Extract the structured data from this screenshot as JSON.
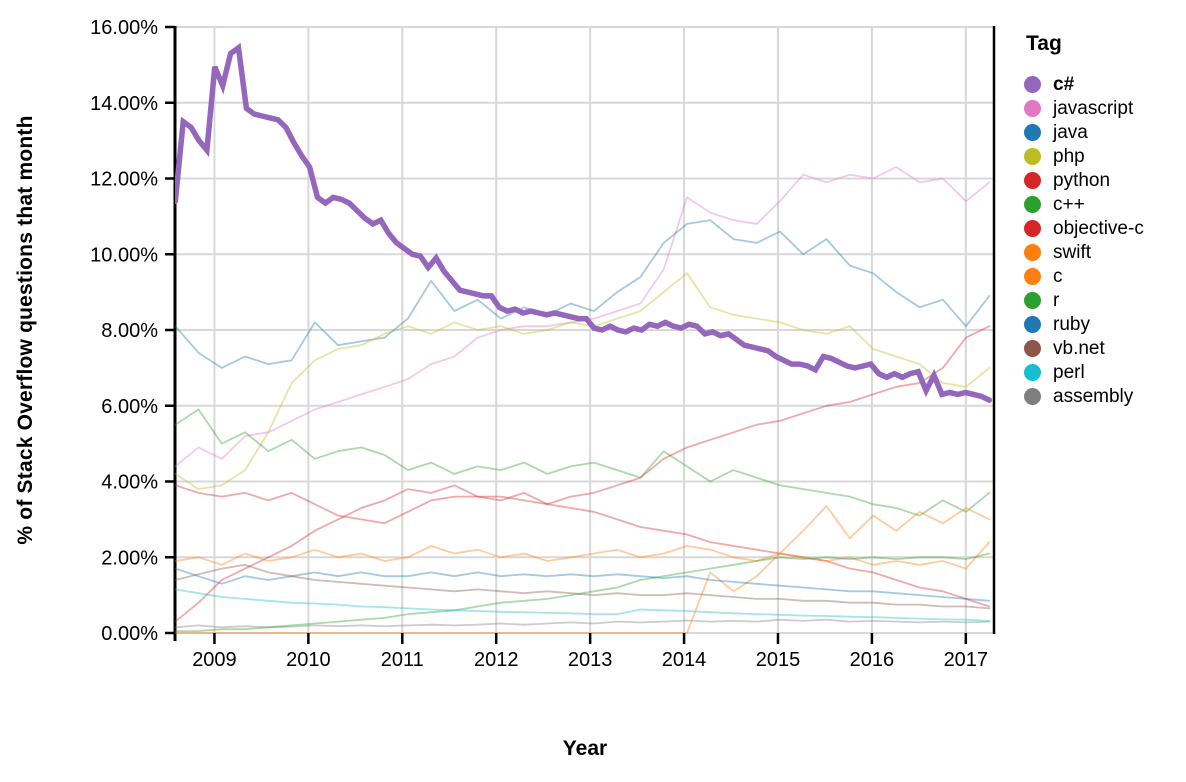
{
  "figure": {
    "y_axis": {
      "title": "% of Stack Overflow questions that month",
      "tick_values": [
        16,
        14,
        12,
        10,
        8,
        6,
        4,
        2,
        0
      ],
      "tick_labels": [
        "16.00%",
        "14.00%",
        "12.00%",
        "10.00%",
        "8.00%",
        "6.00%",
        "4.00%",
        "2.00%",
        "0.00%"
      ]
    },
    "x_axis": {
      "title": "Year",
      "tick_values": [
        2009,
        2010,
        2011,
        2012,
        2013,
        2014,
        2015,
        2016,
        2017
      ],
      "tick_labels": [
        "2009",
        "2010",
        "2011",
        "2012",
        "2013",
        "2014",
        "2015",
        "2016",
        "2017"
      ]
    },
    "legend": {
      "title": "Tag",
      "items": [
        {
          "label": "c#",
          "color": "#9467bd",
          "bold": true
        },
        {
          "label": "javascript",
          "color": "#e377c2",
          "bold": false
        },
        {
          "label": "java",
          "color": "#1f77b4",
          "bold": false
        },
        {
          "label": "php",
          "color": "#bcbd22",
          "bold": false
        },
        {
          "label": "python",
          "color": "#d62728",
          "bold": false
        },
        {
          "label": "c++",
          "color": "#2ca02c",
          "bold": false
        },
        {
          "label": "objective-c",
          "color": "#d62728",
          "bold": false
        },
        {
          "label": "swift",
          "color": "#ff7f0e",
          "bold": false
        },
        {
          "label": "c",
          "color": "#ff7f0e",
          "bold": false
        },
        {
          "label": "r",
          "color": "#2ca02c",
          "bold": false
        },
        {
          "label": "ruby",
          "color": "#1f77b4",
          "bold": false
        },
        {
          "label": "vb.net",
          "color": "#8c564b",
          "bold": false
        },
        {
          "label": "perl",
          "color": "#17becf",
          "bold": false
        },
        {
          "label": "assembly",
          "color": "#7f7f7f",
          "bold": false
        }
      ]
    }
  },
  "chart_data": {
    "type": "line",
    "title": "",
    "xlabel": "Year",
    "ylabel": "% of Stack Overflow questions that month",
    "x_range": [
      2008.58,
      2017.3
    ],
    "ylim": [
      0,
      16
    ],
    "grid": true,
    "legend_position": "right",
    "highlighted_series": "c#",
    "series": [
      {
        "name": "javascript",
        "color": "#e377c2",
        "highlight": false,
        "x_start": 2008.583,
        "x_end": 2017.25,
        "values": [
          4.4,
          4.9,
          4.6,
          5.2,
          5.3,
          5.6,
          5.9,
          6.1,
          6.3,
          6.5,
          6.7,
          7.1,
          7.3,
          7.8,
          8.0,
          8.1,
          8.1,
          8.2,
          8.3,
          8.5,
          8.7,
          9.6,
          11.5,
          11.1,
          10.9,
          10.8,
          11.4,
          12.1,
          11.9,
          12.1,
          12.0,
          12.3,
          11.9,
          12.0,
          11.4,
          11.9
        ]
      },
      {
        "name": "java",
        "color": "#1f77b4",
        "highlight": false,
        "x_start": 2008.583,
        "x_end": 2017.25,
        "values": [
          8.1,
          7.4,
          7.0,
          7.3,
          7.1,
          7.2,
          8.2,
          7.6,
          7.7,
          7.8,
          8.3,
          9.3,
          8.5,
          8.8,
          8.3,
          8.6,
          8.4,
          8.7,
          8.5,
          9.0,
          9.4,
          10.3,
          10.8,
          10.9,
          10.4,
          10.3,
          10.6,
          10.0,
          10.4,
          9.7,
          9.5,
          9.0,
          8.6,
          8.8,
          8.1,
          8.9
        ]
      },
      {
        "name": "php",
        "color": "#bcbd22",
        "highlight": false,
        "x_start": 2008.583,
        "x_end": 2017.25,
        "values": [
          4.2,
          3.8,
          3.9,
          4.3,
          5.3,
          6.6,
          7.2,
          7.5,
          7.6,
          7.9,
          8.1,
          7.9,
          8.2,
          8.0,
          8.1,
          7.9,
          8.0,
          8.2,
          8.1,
          8.3,
          8.5,
          9.0,
          9.5,
          8.6,
          8.4,
          8.3,
          8.2,
          8.0,
          7.9,
          8.1,
          7.5,
          7.3,
          7.1,
          6.6,
          6.5,
          7.0
        ]
      },
      {
        "name": "python",
        "color": "#d62728",
        "highlight": false,
        "x_start": 2008.583,
        "x_end": 2017.25,
        "values": [
          3.9,
          3.7,
          3.6,
          3.7,
          3.5,
          3.7,
          3.4,
          3.1,
          3.0,
          2.9,
          3.2,
          3.5,
          3.6,
          3.6,
          3.6,
          3.5,
          3.4,
          3.6,
          3.7,
          3.9,
          4.1,
          4.6,
          4.9,
          5.1,
          5.3,
          5.5,
          5.6,
          5.8,
          6.0,
          6.1,
          6.3,
          6.5,
          6.6,
          7.0,
          7.8,
          8.1
        ]
      },
      {
        "name": "c++",
        "color": "#2ca02c",
        "highlight": false,
        "x_start": 2008.583,
        "x_end": 2017.25,
        "values": [
          5.5,
          5.9,
          5.0,
          5.3,
          4.8,
          5.1,
          4.6,
          4.8,
          4.9,
          4.7,
          4.3,
          4.5,
          4.2,
          4.4,
          4.3,
          4.5,
          4.2,
          4.4,
          4.5,
          4.3,
          4.1,
          4.8,
          4.4,
          4.0,
          4.3,
          4.1,
          3.9,
          3.8,
          3.7,
          3.6,
          3.4,
          3.3,
          3.1,
          3.5,
          3.2,
          3.7
        ]
      },
      {
        "name": "objective-c",
        "color": "#d62728",
        "highlight": false,
        "x_start": 2008.583,
        "x_end": 2017.25,
        "values": [
          0.3,
          0.8,
          1.4,
          1.7,
          2.0,
          2.3,
          2.7,
          3.0,
          3.3,
          3.5,
          3.8,
          3.7,
          3.9,
          3.6,
          3.5,
          3.7,
          3.4,
          3.3,
          3.2,
          3.0,
          2.8,
          2.7,
          2.6,
          2.4,
          2.3,
          2.2,
          2.1,
          2.0,
          1.9,
          1.7,
          1.6,
          1.4,
          1.2,
          1.1,
          0.9,
          0.7
        ]
      },
      {
        "name": "swift",
        "color": "#ff7f0e",
        "highlight": false,
        "x_start": 2008.583,
        "x_end": 2017.25,
        "values": [
          0,
          0,
          0,
          0,
          0,
          0,
          0,
          0,
          0,
          0,
          0,
          0,
          0,
          0,
          0,
          0,
          0,
          0,
          0,
          0,
          0,
          0,
          0,
          1.6,
          1.1,
          1.5,
          2.1,
          2.7,
          3.35,
          2.5,
          3.1,
          2.7,
          3.2,
          2.9,
          3.3,
          3.0
        ]
      },
      {
        "name": "c",
        "color": "#ff7f0e",
        "highlight": false,
        "x_start": 2008.583,
        "x_end": 2017.25,
        "values": [
          1.9,
          2.0,
          1.8,
          2.1,
          1.9,
          2.0,
          2.2,
          2.0,
          2.1,
          1.9,
          2.0,
          2.3,
          2.1,
          2.2,
          2.0,
          2.1,
          1.9,
          2.0,
          2.1,
          2.2,
          2.0,
          2.1,
          2.3,
          2.2,
          2.0,
          1.9,
          2.1,
          2.0,
          1.9,
          2.0,
          1.8,
          1.9,
          1.8,
          1.9,
          1.7,
          2.4
        ]
      },
      {
        "name": "r",
        "color": "#2ca02c",
        "highlight": false,
        "x_start": 2008.583,
        "x_end": 2017.25,
        "values": [
          0.05,
          0.05,
          0.1,
          0.1,
          0.15,
          0.2,
          0.25,
          0.3,
          0.35,
          0.4,
          0.5,
          0.55,
          0.6,
          0.7,
          0.8,
          0.85,
          0.9,
          1.0,
          1.1,
          1.2,
          1.4,
          1.5,
          1.6,
          1.7,
          1.8,
          1.9,
          2.0,
          1.95,
          2.0,
          1.95,
          2.0,
          1.95,
          2.0,
          2.0,
          1.95,
          2.1
        ]
      },
      {
        "name": "ruby",
        "color": "#1f77b4",
        "highlight": false,
        "x_start": 2008.583,
        "x_end": 2017.25,
        "values": [
          1.7,
          1.5,
          1.3,
          1.5,
          1.4,
          1.5,
          1.6,
          1.5,
          1.6,
          1.5,
          1.5,
          1.6,
          1.5,
          1.6,
          1.5,
          1.55,
          1.5,
          1.55,
          1.5,
          1.55,
          1.5,
          1.45,
          1.5,
          1.4,
          1.35,
          1.3,
          1.25,
          1.2,
          1.15,
          1.1,
          1.1,
          1.05,
          1.0,
          0.95,
          0.9,
          0.85
        ]
      },
      {
        "name": "vb.net",
        "color": "#8c564b",
        "highlight": false,
        "x_start": 2008.583,
        "x_end": 2017.25,
        "values": [
          1.4,
          1.55,
          1.7,
          1.8,
          1.6,
          1.5,
          1.4,
          1.35,
          1.3,
          1.25,
          1.2,
          1.15,
          1.1,
          1.15,
          1.1,
          1.05,
          1.1,
          1.05,
          1.0,
          1.05,
          1.0,
          1.0,
          1.05,
          1.0,
          0.95,
          0.9,
          0.9,
          0.85,
          0.85,
          0.8,
          0.8,
          0.75,
          0.75,
          0.7,
          0.7,
          0.65
        ]
      },
      {
        "name": "perl",
        "color": "#17becf",
        "highlight": false,
        "x_start": 2008.583,
        "x_end": 2017.25,
        "values": [
          1.15,
          1.05,
          0.95,
          0.9,
          0.85,
          0.8,
          0.78,
          0.75,
          0.7,
          0.68,
          0.65,
          0.62,
          0.6,
          0.58,
          0.56,
          0.55,
          0.53,
          0.52,
          0.5,
          0.5,
          0.62,
          0.6,
          0.58,
          0.55,
          0.52,
          0.5,
          0.48,
          0.46,
          0.45,
          0.43,
          0.42,
          0.4,
          0.38,
          0.36,
          0.35,
          0.32
        ]
      },
      {
        "name": "assembly",
        "color": "#7f7f7f",
        "highlight": false,
        "x_start": 2008.583,
        "x_end": 2017.25,
        "values": [
          0.15,
          0.2,
          0.15,
          0.18,
          0.15,
          0.17,
          0.2,
          0.18,
          0.2,
          0.18,
          0.2,
          0.22,
          0.2,
          0.22,
          0.25,
          0.22,
          0.25,
          0.28,
          0.25,
          0.3,
          0.28,
          0.3,
          0.33,
          0.3,
          0.32,
          0.3,
          0.35,
          0.32,
          0.35,
          0.3,
          0.32,
          0.3,
          0.28,
          0.3,
          0.28,
          0.3
        ]
      },
      {
        "name": "c#",
        "color": "#9467bd",
        "highlight": true,
        "x_start": 2008.583,
        "x_end": 2017.25,
        "values": [
          11.4,
          13.5,
          13.35,
          13.0,
          12.75,
          14.95,
          14.45,
          15.3,
          15.45,
          13.85,
          13.7,
          13.65,
          13.6,
          13.55,
          13.35,
          12.95,
          12.6,
          12.3,
          11.5,
          11.35,
          11.5,
          11.45,
          11.35,
          11.15,
          10.95,
          10.8,
          10.9,
          10.55,
          10.3,
          10.15,
          10.0,
          9.95,
          9.65,
          9.9,
          9.55,
          9.3,
          9.05,
          9.0,
          8.95,
          8.9,
          8.9,
          8.6,
          8.5,
          8.55,
          8.45,
          8.5,
          8.45,
          8.4,
          8.45,
          8.4,
          8.35,
          8.3,
          8.3,
          8.05,
          8.0,
          8.1,
          8.0,
          7.95,
          8.05,
          8.0,
          8.15,
          8.1,
          8.2,
          8.1,
          8.05,
          8.15,
          8.1,
          7.9,
          7.95,
          7.85,
          7.9,
          7.75,
          7.6,
          7.55,
          7.5,
          7.45,
          7.3,
          7.2,
          7.1,
          7.1,
          7.05,
          6.95,
          7.3,
          7.25,
          7.15,
          7.05,
          7.0,
          7.05,
          7.1,
          6.85,
          6.75,
          6.85,
          6.75,
          6.85,
          6.9,
          6.4,
          6.8,
          6.3,
          6.35,
          6.3,
          6.35,
          6.3,
          6.25,
          6.15
        ]
      }
    ]
  }
}
